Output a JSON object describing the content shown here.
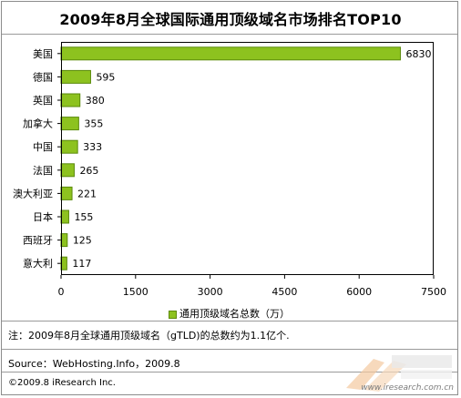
{
  "chart_data": {
    "type": "bar",
    "orientation": "horizontal",
    "title": "2009年8月全球国际通用顶级域名市场排名TOP10",
    "categories": [
      "美国",
      "德国",
      "英国",
      "加拿大",
      "中国",
      "法国",
      "澳大利亚",
      "日本",
      "西班牙",
      "意大利"
    ],
    "series": [
      {
        "name": "通用顶级域名总数（万）",
        "values": [
          6830,
          595,
          380,
          355,
          333,
          265,
          221,
          155,
          125,
          117
        ]
      }
    ],
    "xlim": [
      0,
      7500
    ],
    "xticks": [
      0,
      1500,
      3000,
      4500,
      6000,
      7500
    ],
    "legend": "bottom",
    "grid": false,
    "bar_color": "#8dc21f",
    "bar_edge_color": "#5a8a0a"
  },
  "footer": {
    "note": "注：2009年8月全球通用顶级域名（gTLD)的总数约为1.1亿个.",
    "source": "Source：WebHosting.Info，2009.8",
    "copyright": "©2009.8 iResearch Inc.",
    "watermark_url": "www.iresearch.com.cn"
  }
}
